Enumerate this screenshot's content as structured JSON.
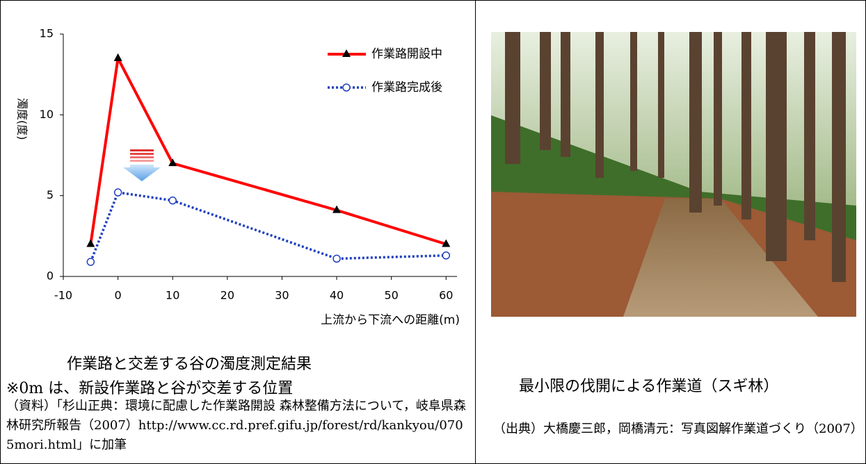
{
  "chart_data": {
    "type": "line",
    "ylabel": "濁度(度)",
    "xlabel": "上流から下流への距離(m)",
    "x": [
      -5,
      0,
      10,
      40,
      60
    ],
    "series": [
      {
        "name": "作業路開設中",
        "color": "#ff0000",
        "marker": "triangle",
        "dash": "solid",
        "values": [
          2,
          13.5,
          7,
          4.1,
          2
        ]
      },
      {
        "name": "作業路完成後",
        "color": "#1f3fbf",
        "marker": "circle",
        "dash": "dotted",
        "values": [
          0.9,
          5.2,
          4.7,
          1.1,
          1.3
        ]
      }
    ],
    "xlim": [
      -10,
      62
    ],
    "xticks": [
      -10,
      0,
      10,
      20,
      30,
      40,
      50,
      60
    ],
    "ylim": [
      0,
      15
    ],
    "yticks": [
      0,
      5,
      10,
      15
    ],
    "legend": "upper right"
  },
  "left": {
    "caption": "作業路と交差する谷の濁度測定結果",
    "note": "※0m は、新設作業路と谷が交差する位置",
    "source": "（資料）「杉山正典：環境に配慮した作業路開設 森林整備方法について，岐阜県森林研究所報告（2007）http://www.cc.rd.pref.gifu.jp/forest/rd/kankyou/0705mori.html」に加筆"
  },
  "right": {
    "caption": "最小限の伐開による作業道（スギ林）",
    "source": "（出典）大橋慶三郎，岡橋清元：写真図解作業道づくり（2007）"
  }
}
